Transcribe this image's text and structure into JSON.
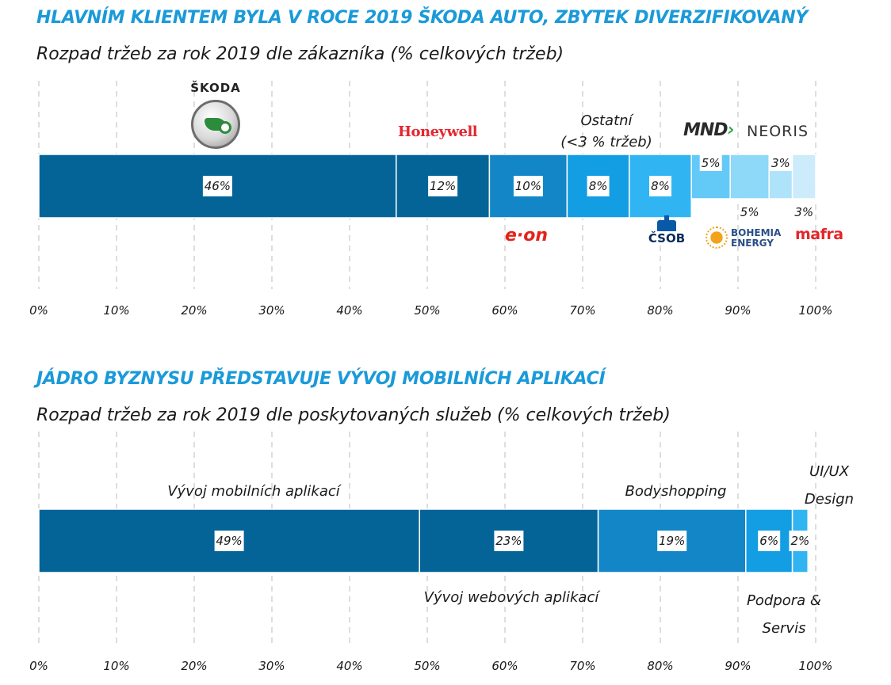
{
  "sections": [
    {
      "heading": "HLAVNÍM KLIENTEM BYLA V ROCE 2019 ŠKODA AUTO, ZBYTEK DIVERZIFIKOVANÝ",
      "subheading": "Rozpad tržeb za rok 2019 dle zákazníka (% celkových tržeb)"
    },
    {
      "heading": "JÁDRO BYZNYSU PŘEDSTAVUJE VÝVOJ MOBILNÍCH APLIKACÍ",
      "subheading": "Rozpad tržeb za rok 2019 dle poskytovaných služeb (% celkových tržeb)"
    }
  ],
  "logos": {
    "skoda": "ŠKODA",
    "honeywell": "Honeywell",
    "mnd": "MND",
    "neoris": "NEORIS",
    "eon": "e·on",
    "csob": "ČSOB",
    "bohemia_line1": "BOHEMIA",
    "bohemia_line2": "ENERGY",
    "mafra": "mafra"
  },
  "annotations": {
    "ostatni_line1": "Ostatní",
    "ostatni_line2": "(<3 % tržeb)",
    "mobile": "Vývoj mobilních aplikací",
    "web": "Vývoj webových aplikací",
    "bodyshopping": "Bodyshopping",
    "podpora_line1": "Podpora &",
    "podpora_line2": "Servis",
    "uiux_line1": "UI/UX",
    "uiux_line2": "Design"
  },
  "chart_data": [
    {
      "type": "bar",
      "orientation": "horizontal-stacked",
      "xlim": [
        0,
        100
      ],
      "x_ticks": [
        "0%",
        "10%",
        "20%",
        "30%",
        "40%",
        "50%",
        "60%",
        "70%",
        "80%",
        "90%",
        "100%"
      ],
      "grid": "vertical dashed",
      "segments": [
        {
          "value": 46,
          "label": "46%",
          "entity": "ŠKODA",
          "color": "#046498",
          "height": 1
        },
        {
          "value": 12,
          "label": "12%",
          "entity": "Honeywell",
          "color": "#046498",
          "height": 1
        },
        {
          "value": 10,
          "label": "10%",
          "entity": "e·on",
          "color": "#1286c7",
          "height": 1
        },
        {
          "value": 8,
          "label": "8%",
          "entity": "Ostatní (<3 % tržeb)",
          "color": "#139de3",
          "height": 1
        },
        {
          "value": 8,
          "label": "8%",
          "entity": "ČSOB",
          "color": "#30b5f2",
          "height": 1
        },
        {
          "value": 5,
          "label": "5%",
          "entity": "MND",
          "color": "#63c9f7",
          "height": 0.7,
          "label_position": "above"
        },
        {
          "value": 5,
          "label": "5%",
          "entity": "BOHEMIA ENERGY",
          "color": "#8ed8f8",
          "height": 0.7,
          "label_position": "below"
        },
        {
          "value": 3,
          "label": "3%",
          "entity": "NEORIS",
          "color": "#aee3fa",
          "height": 0.7,
          "label_position": "above"
        },
        {
          "value": 3,
          "label": "3%",
          "entity": "mafra",
          "color": "#ccecfb",
          "height": 0.7,
          "label_position": "below"
        }
      ]
    },
    {
      "type": "bar",
      "orientation": "horizontal-stacked",
      "xlim": [
        0,
        100
      ],
      "x_ticks": [
        "0%",
        "10%",
        "20%",
        "30%",
        "40%",
        "50%",
        "60%",
        "70%",
        "80%",
        "90%",
        "100%"
      ],
      "grid": "vertical dashed",
      "segments": [
        {
          "value": 49,
          "label": "49%",
          "entity": "Vývoj mobilních aplikací",
          "color": "#046498"
        },
        {
          "value": 23,
          "label": "23%",
          "entity": "Vývoj webových aplikací",
          "color": "#046498"
        },
        {
          "value": 19,
          "label": "19%",
          "entity": "Bodyshopping",
          "color": "#1286c7"
        },
        {
          "value": 6,
          "label": "6%",
          "entity": "Podpora & Servis",
          "color": "#139de3"
        },
        {
          "value": 2,
          "label": "2%",
          "entity": "UI/UX Design",
          "color": "#30b5f2"
        }
      ]
    }
  ]
}
